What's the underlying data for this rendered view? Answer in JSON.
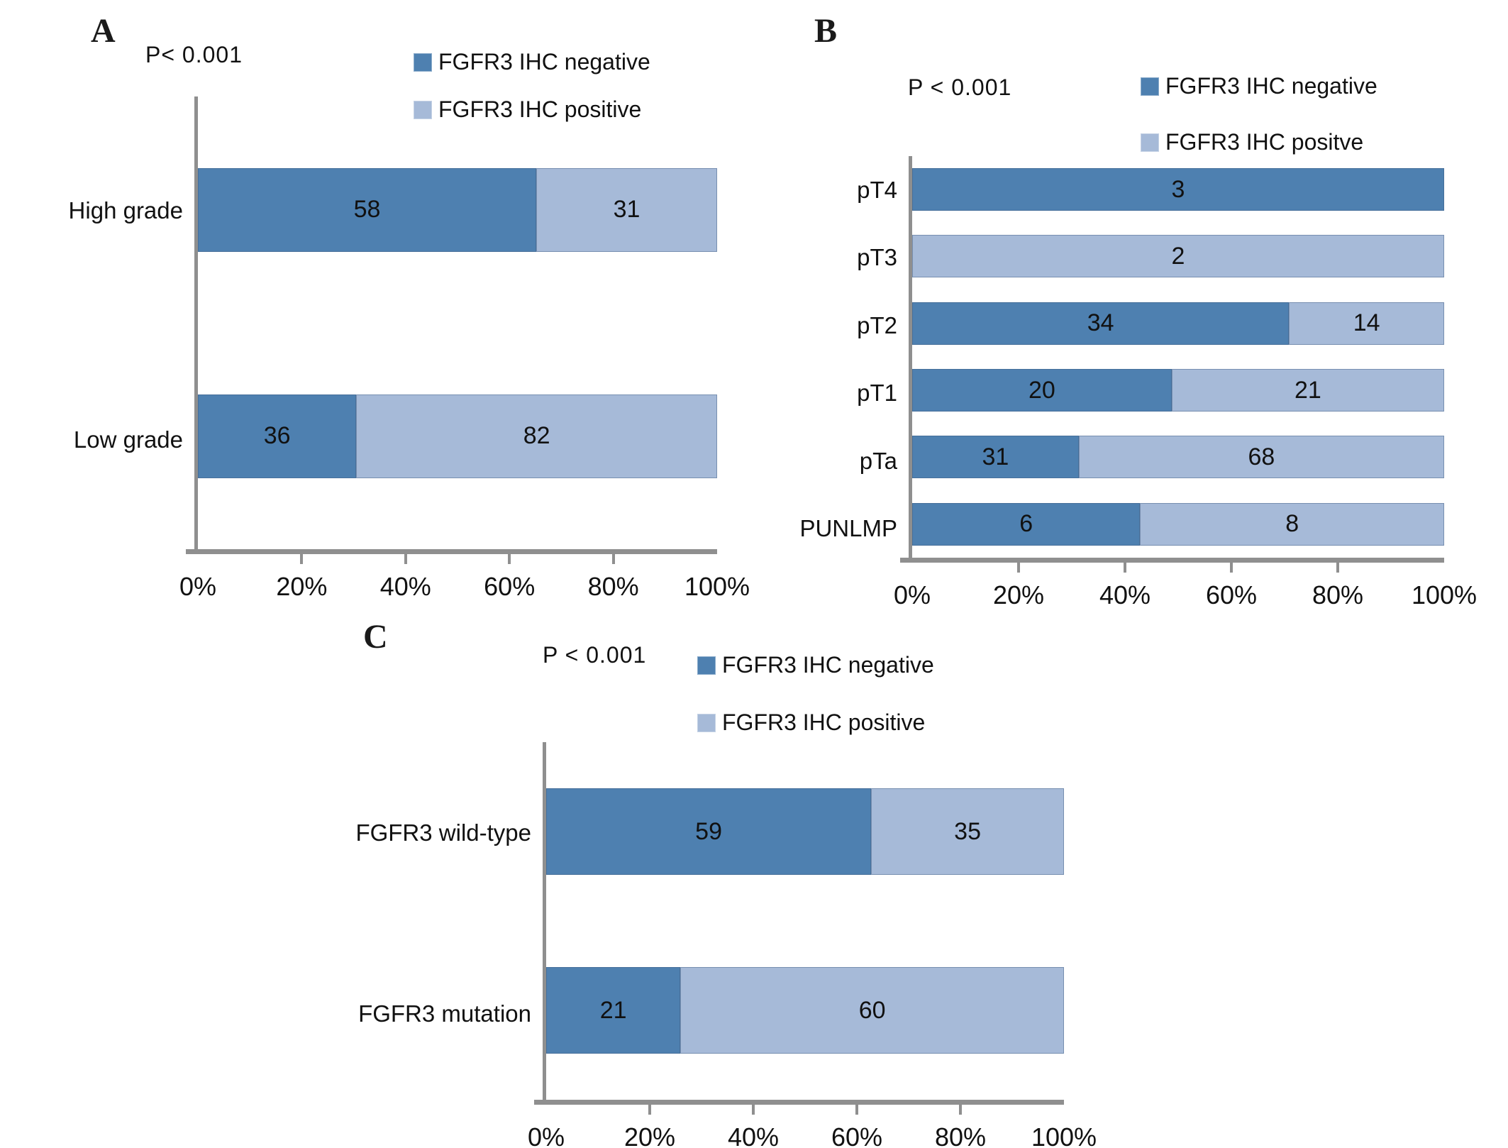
{
  "figure": {
    "description": "Stacked horizontal bar charts of FGFR3 IHC status by tumor grade, pT stage and FGFR3 mutation status",
    "background": "#ffffff"
  },
  "colors": {
    "negative": "#4e80b0",
    "positive": "#a6bad8",
    "axis": "#8f8f8f",
    "text": "#111111"
  },
  "chart_data": [
    {
      "panel": "A",
      "type": "bar",
      "orientation": "horizontal",
      "stacked": true,
      "p_label": "P< 0.001",
      "categories": [
        "High grade",
        "Low grade"
      ],
      "series": [
        {
          "name": "FGFR3 IHC negative",
          "color_key": "negative",
          "values": [
            58,
            36
          ]
        },
        {
          "name": "FGFR3 IHC positive",
          "color_key": "positive",
          "values": [
            31,
            82
          ]
        }
      ],
      "x_axis": {
        "tick_labels": [
          "0%",
          "20%",
          "40%",
          "60%",
          "80%",
          "100%"
        ],
        "range": [
          0,
          100
        ]
      },
      "legend_position": "top-right",
      "segment_labels": "counts",
      "bar_scale": "percent of row total"
    },
    {
      "panel": "B",
      "type": "bar",
      "orientation": "horizontal",
      "stacked": true,
      "p_label": "P < 0.001",
      "categories": [
        "pT4",
        "pT3",
        "pT2",
        "pT1",
        "pTa",
        "PUNLMP"
      ],
      "series": [
        {
          "name": "FGFR3 IHC negative",
          "color_key": "negative",
          "values": [
            3,
            0,
            34,
            20,
            31,
            6
          ]
        },
        {
          "name": "FGFR3 IHC positve",
          "color_key": "positive",
          "values": [
            0,
            2,
            14,
            21,
            68,
            8
          ]
        }
      ],
      "x_axis": {
        "tick_labels": [
          "0%",
          "20%",
          "40%",
          "60%",
          "80%",
          "100%"
        ],
        "range": [
          0,
          100
        ]
      },
      "legend_position": "top-right",
      "segment_labels": "counts",
      "bar_scale": "percent of row total"
    },
    {
      "panel": "C",
      "type": "bar",
      "orientation": "horizontal",
      "stacked": true,
      "p_label": "P < 0.001",
      "categories": [
        "FGFR3 wild-type",
        "FGFR3 mutation"
      ],
      "series": [
        {
          "name": "FGFR3 IHC negative",
          "color_key": "negative",
          "values": [
            59,
            21
          ]
        },
        {
          "name": "FGFR3 IHC positive",
          "color_key": "positive",
          "values": [
            35,
            60
          ]
        }
      ],
      "x_axis": {
        "tick_labels": [
          "0%",
          "20%",
          "40%",
          "60%",
          "80%",
          "100%"
        ],
        "range": [
          0,
          100
        ]
      },
      "legend_position": "top-right",
      "segment_labels": "counts",
      "bar_scale": "percent of row total"
    }
  ]
}
